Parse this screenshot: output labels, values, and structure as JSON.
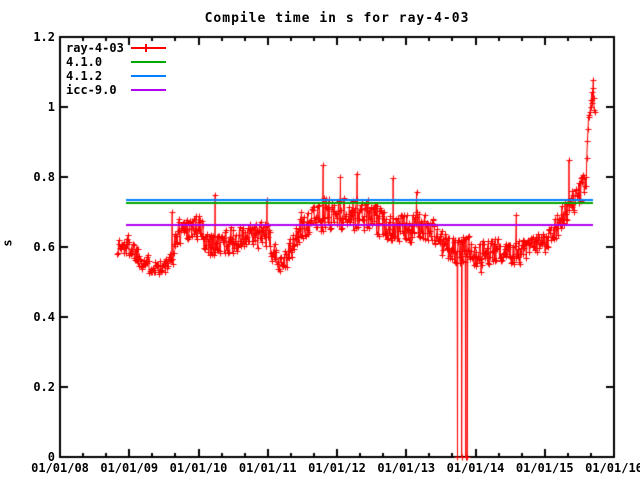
{
  "chart_data": {
    "type": "line",
    "title": "Compile time in s for ray-4-03",
    "xlabel": "",
    "ylabel": "s",
    "x_axis": {
      "range_years": [
        2008,
        2016
      ],
      "tick_labels": [
        "01/01/08",
        "01/01/09",
        "01/01/10",
        "01/01/11",
        "01/01/12",
        "01/01/13",
        "01/01/14",
        "01/01/15",
        "01/01/16"
      ],
      "minor_ticks_per_year": 3
    },
    "y_axis": {
      "range": [
        0,
        1.2
      ],
      "tick_step": 0.2,
      "tick_labels": [
        "0",
        "0.2",
        "0.4",
        "0.6",
        "0.8",
        "1",
        "1.2"
      ]
    },
    "grid": false,
    "legend_position": "top-left",
    "series": [
      {
        "name": "ray-4-03",
        "style": "linespoints",
        "marker": "plus",
        "color": "#ff0000",
        "t_range": [
          2008.83,
          2015.73
        ],
        "trend_anchors": [
          [
            2008.83,
            0.6,
            0.03
          ],
          [
            2009.0,
            0.605,
            0.035
          ],
          [
            2009.15,
            0.57,
            0.03
          ],
          [
            2009.3,
            0.548,
            0.025
          ],
          [
            2009.5,
            0.543,
            0.022
          ],
          [
            2009.6,
            0.555,
            0.03
          ],
          [
            2009.7,
            0.645,
            0.04
          ],
          [
            2009.85,
            0.66,
            0.04
          ],
          [
            2010.0,
            0.655,
            0.045
          ],
          [
            2010.12,
            0.62,
            0.04
          ],
          [
            2010.25,
            0.603,
            0.035
          ],
          [
            2010.42,
            0.618,
            0.038
          ],
          [
            2010.6,
            0.623,
            0.038
          ],
          [
            2010.8,
            0.63,
            0.04
          ],
          [
            2010.97,
            0.64,
            0.04
          ],
          [
            2011.1,
            0.572,
            0.038
          ],
          [
            2011.22,
            0.56,
            0.032
          ],
          [
            2011.33,
            0.588,
            0.038
          ],
          [
            2011.46,
            0.65,
            0.045
          ],
          [
            2011.6,
            0.678,
            0.04
          ],
          [
            2011.8,
            0.692,
            0.048
          ],
          [
            2012.0,
            0.698,
            0.048
          ],
          [
            2012.25,
            0.695,
            0.048
          ],
          [
            2012.45,
            0.693,
            0.045
          ],
          [
            2012.65,
            0.668,
            0.042
          ],
          [
            2012.85,
            0.655,
            0.04
          ],
          [
            2013.05,
            0.652,
            0.042
          ],
          [
            2013.2,
            0.663,
            0.042
          ],
          [
            2013.4,
            0.645,
            0.04
          ],
          [
            2013.55,
            0.603,
            0.04
          ],
          [
            2013.72,
            0.585,
            0.038
          ],
          [
            2013.9,
            0.598,
            0.04
          ],
          [
            2014.05,
            0.58,
            0.04
          ],
          [
            2014.25,
            0.588,
            0.035
          ],
          [
            2014.45,
            0.595,
            0.035
          ],
          [
            2014.62,
            0.583,
            0.038
          ],
          [
            2014.8,
            0.598,
            0.033
          ],
          [
            2014.98,
            0.613,
            0.033
          ],
          [
            2015.1,
            0.643,
            0.032
          ],
          [
            2015.25,
            0.683,
            0.038
          ],
          [
            2015.4,
            0.718,
            0.042
          ],
          [
            2015.52,
            0.76,
            0.038
          ],
          [
            2015.6,
            0.788,
            0.028
          ],
          [
            2015.63,
            0.995,
            0.055
          ],
          [
            2015.73,
            1.0,
            0.055
          ]
        ],
        "events": [
          [
            2009.62,
            0.7
          ],
          [
            2010.24,
            0.75
          ],
          [
            2010.99,
            0.734
          ],
          [
            2011.8,
            0.834
          ],
          [
            2012.05,
            0.8
          ],
          [
            2012.29,
            0.81
          ],
          [
            2012.81,
            0.797
          ],
          [
            2013.15,
            0.758
          ],
          [
            2013.74,
            0.0
          ],
          [
            2013.8,
            0.0
          ],
          [
            2013.86,
            0.0
          ],
          [
            2013.88,
            0.0
          ],
          [
            2014.08,
            0.528
          ],
          [
            2014.59,
            0.691
          ],
          [
            2015.35,
            0.849
          ],
          [
            2015.7,
            1.078
          ]
        ]
      },
      {
        "name": "4.1.0",
        "style": "hline",
        "color": "#00a800",
        "value": 0.727,
        "t_range": [
          2008.95,
          2015.7
        ]
      },
      {
        "name": "4.1.2",
        "style": "hline",
        "color": "#0080ff",
        "value": 0.735,
        "t_range": [
          2008.95,
          2015.7
        ]
      },
      {
        "name": "icc-9.0",
        "style": "hline",
        "color": "#b000f0",
        "value": 0.664,
        "t_range": [
          2008.95,
          2015.7
        ]
      }
    ]
  },
  "colors": {
    "axis": "#000000",
    "background": "#ffffff",
    "text": "#000000"
  }
}
